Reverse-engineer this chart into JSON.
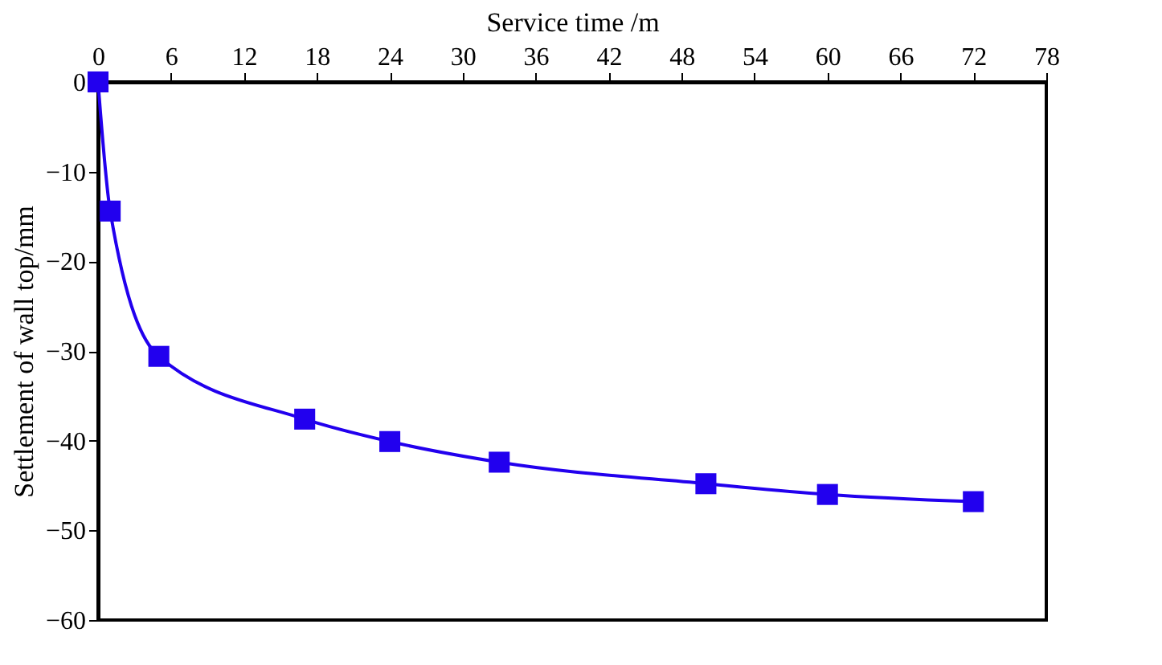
{
  "chart_data": {
    "type": "line",
    "xlabel": "Service time /m",
    "ylabel": "Settlement of wall top/mm",
    "x": [
      0,
      1,
      5,
      17,
      24,
      33,
      50,
      60,
      72
    ],
    "series": [
      {
        "color": "#2200ee",
        "values": [
          0,
          -14.4,
          -30.6,
          -37.6,
          -40.1,
          -42.4,
          -44.8,
          -46.0,
          -46.8
        ]
      }
    ],
    "xlim": [
      0,
      78
    ],
    "xticks": [
      0,
      6,
      12,
      18,
      24,
      30,
      36,
      42,
      48,
      54,
      60,
      66,
      72,
      78
    ],
    "ylim": [
      -60,
      0
    ],
    "yticks": [
      -60,
      -50,
      -40,
      -30,
      -20,
      -10,
      0
    ],
    "grid": false,
    "marker": "square",
    "line_style": "solid"
  }
}
